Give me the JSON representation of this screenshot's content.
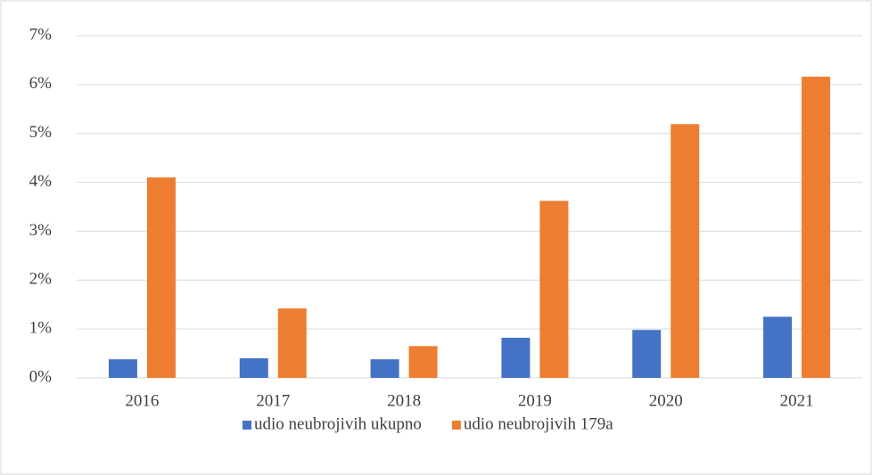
{
  "chart_data": {
    "type": "bar",
    "categories": [
      "2016",
      "2017",
      "2018",
      "2019",
      "2020",
      "2021"
    ],
    "series": [
      {
        "name": "udio neubrojivih ukupno",
        "color": "#4472c4",
        "values": [
          0.38,
          0.4,
          0.38,
          0.82,
          0.98,
          1.25
        ]
      },
      {
        "name": "udio neubrojivih 179a",
        "color": "#ed7d31",
        "values": [
          4.1,
          1.42,
          0.65,
          3.62,
          5.19,
          6.16
        ]
      }
    ],
    "ylim": [
      0,
      7
    ],
    "yticks": [
      {
        "value": 0,
        "label": "0%"
      },
      {
        "value": 1,
        "label": "1%"
      },
      {
        "value": 2,
        "label": "2%"
      },
      {
        "value": 3,
        "label": "3%"
      },
      {
        "value": 4,
        "label": "4%"
      },
      {
        "value": 5,
        "label": "5%"
      },
      {
        "value": 6,
        "label": "6%"
      },
      {
        "value": 7,
        "label": "7%"
      }
    ],
    "grid": true,
    "legend": "bottom"
  }
}
